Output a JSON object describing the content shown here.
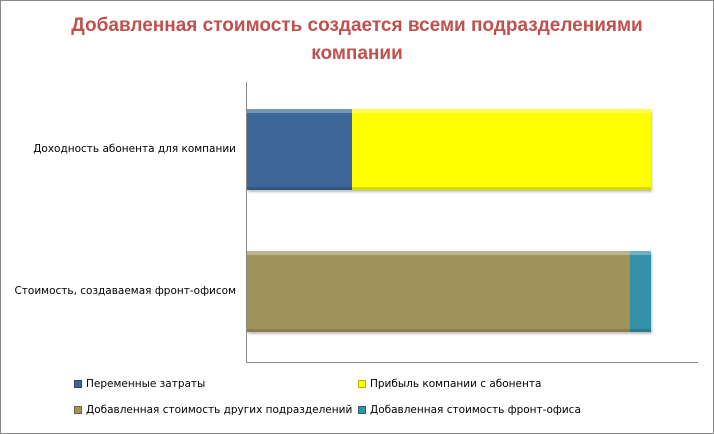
{
  "chart_data": {
    "type": "bar",
    "orientation": "horizontal",
    "stacked": true,
    "title": "Добавленная стоимость создается всеми подразделениями компании",
    "title_lines": [
      "Добавленная  стоимость создается всеми подразделениями",
      "компании"
    ],
    "categories": [
      "Доходность абонента для компании",
      "Стоимость, создаваемая фронт-офисом"
    ],
    "series": [
      {
        "name": "Переменные затраты",
        "color": "#3d6799",
        "values": [
          26,
          0
        ]
      },
      {
        "name": "Прибыль компании с абонента",
        "color": "#ffff00",
        "values": [
          74,
          0
        ]
      },
      {
        "name": "Добавленная стоимость других подразделений",
        "color": "#a0945c",
        "values": [
          0,
          95
        ]
      },
      {
        "name": "Добавленная стоимость фронт-офиса",
        "color": "#3391a8",
        "values": [
          0,
          5
        ]
      }
    ],
    "xlabel": "",
    "ylabel": "",
    "xlim": [
      0,
      112
    ],
    "grid": false,
    "axis_tick_labels_visible": false,
    "legend_position": "bottom"
  },
  "legend": [
    {
      "label": "Переменные затраты",
      "color": "#3d6799"
    },
    {
      "label": "Прибыль компании с абонента",
      "color": "#ffff00"
    },
    {
      "label": "Добавленная стоимость других подразделений",
      "color": "#a0945c"
    },
    {
      "label": "Добавленная стоимость фронт-офиса",
      "color": "#3391a8"
    }
  ]
}
